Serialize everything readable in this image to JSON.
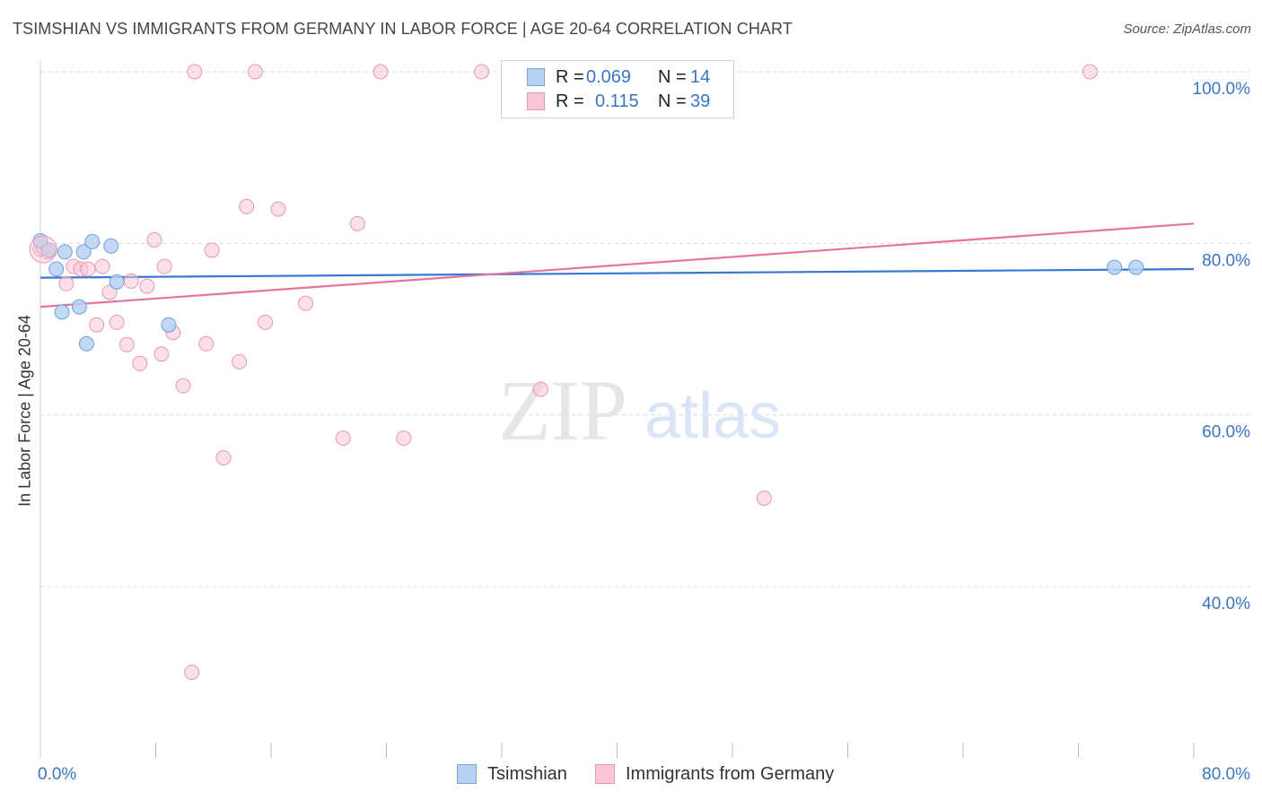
{
  "title": "TSIMSHIAN VS IMMIGRANTS FROM GERMANY IN LABOR FORCE | AGE 20-64 CORRELATION CHART",
  "source": "Source: ZipAtlas.com",
  "colors": {
    "blue": "#3a76d4",
    "blue_fill": "#b7d1f3",
    "pink": "#e4759c",
    "pink_fill": "#f8c6d6",
    "axis_label": "#3a76c4",
    "grid": "#d8d8d8"
  },
  "legend": {
    "rows": [
      {
        "r_label": "R =",
        "r_value": "0.069",
        "n_label": "N =",
        "n_value": "14"
      },
      {
        "r_label": "R =",
        "r_value": "0.115",
        "n_label": "N =",
        "n_value": "39"
      }
    ]
  },
  "bottom_legend": [
    "Tsimshian",
    "Immigrants from Germany"
  ],
  "watermark": {
    "zip": "ZIP",
    "atlas": "atlas"
  },
  "chart_data": {
    "type": "scatter",
    "xlabel": "",
    "ylabel": "In Labor Force | Age 20-64",
    "xlim": [
      0,
      80
    ],
    "ylim": [
      20.5,
      102
    ],
    "x_tick_labels": [
      {
        "value": 0,
        "label": "0.0%"
      },
      {
        "value": 80,
        "label": "80.0%"
      }
    ],
    "y_tick_labels": [
      {
        "value": 100,
        "label": "100.0%"
      },
      {
        "value": 80,
        "label": "80.0%"
      },
      {
        "value": 60,
        "label": "60.0%"
      },
      {
        "value": 40,
        "label": "40.0%"
      }
    ],
    "series": [
      {
        "name": "Tsimshian",
        "color": "#3a76d4",
        "trend": {
          "x": [
            0,
            80
          ],
          "y": [
            76.0,
            77.0
          ]
        },
        "points": [
          {
            "x": 0.0,
            "y": 80.3
          },
          {
            "x": 0.6,
            "y": 79.2
          },
          {
            "x": 1.1,
            "y": 77.0
          },
          {
            "x": 1.5,
            "y": 72.0
          },
          {
            "x": 1.7,
            "y": 79.0
          },
          {
            "x": 2.7,
            "y": 72.6
          },
          {
            "x": 3.0,
            "y": 79.0
          },
          {
            "x": 3.2,
            "y": 68.3
          },
          {
            "x": 3.6,
            "y": 80.2
          },
          {
            "x": 4.9,
            "y": 79.7
          },
          {
            "x": 5.3,
            "y": 75.5
          },
          {
            "x": 8.9,
            "y": 70.5
          },
          {
            "x": 74.5,
            "y": 77.2
          },
          {
            "x": 76.0,
            "y": 77.2
          }
        ]
      },
      {
        "name": "Immigrants from Germany",
        "color": "#e4759c",
        "trend": {
          "x": [
            0,
            80
          ],
          "y": [
            72.6,
            82.3
          ]
        },
        "points": [
          {
            "x": 0.0,
            "y": 79.3
          },
          {
            "x": 0.5,
            "y": 79.0
          },
          {
            "x": 1.8,
            "y": 75.3
          },
          {
            "x": 2.3,
            "y": 77.3
          },
          {
            "x": 2.8,
            "y": 77.0
          },
          {
            "x": 3.3,
            "y": 77.0
          },
          {
            "x": 3.9,
            "y": 70.5
          },
          {
            "x": 4.3,
            "y": 77.3
          },
          {
            "x": 4.8,
            "y": 74.3
          },
          {
            "x": 5.3,
            "y": 70.8
          },
          {
            "x": 6.0,
            "y": 68.2
          },
          {
            "x": 6.3,
            "y": 75.6
          },
          {
            "x": 6.9,
            "y": 66.0
          },
          {
            "x": 7.4,
            "y": 75.0
          },
          {
            "x": 7.9,
            "y": 80.4
          },
          {
            "x": 8.4,
            "y": 67.1
          },
          {
            "x": 8.6,
            "y": 77.3
          },
          {
            "x": 9.2,
            "y": 69.6
          },
          {
            "x": 9.9,
            "y": 63.4
          },
          {
            "x": 10.5,
            "y": 30.0
          },
          {
            "x": 10.7,
            "y": 100.0
          },
          {
            "x": 11.5,
            "y": 68.3
          },
          {
            "x": 11.9,
            "y": 79.2
          },
          {
            "x": 12.7,
            "y": 55.0
          },
          {
            "x": 13.8,
            "y": 66.2
          },
          {
            "x": 14.3,
            "y": 84.3
          },
          {
            "x": 14.9,
            "y": 100.0
          },
          {
            "x": 15.6,
            "y": 70.8
          },
          {
            "x": 16.5,
            "y": 84.0
          },
          {
            "x": 18.4,
            "y": 73.0
          },
          {
            "x": 21.0,
            "y": 57.3
          },
          {
            "x": 22.0,
            "y": 82.3
          },
          {
            "x": 23.6,
            "y": 100.0
          },
          {
            "x": 25.2,
            "y": 57.3
          },
          {
            "x": 30.6,
            "y": 100.0
          },
          {
            "x": 34.7,
            "y": 63.0
          },
          {
            "x": 50.2,
            "y": 50.3
          },
          {
            "x": 72.8,
            "y": 100.0
          },
          {
            "x": 0.2,
            "y": 79.5
          }
        ]
      }
    ]
  }
}
